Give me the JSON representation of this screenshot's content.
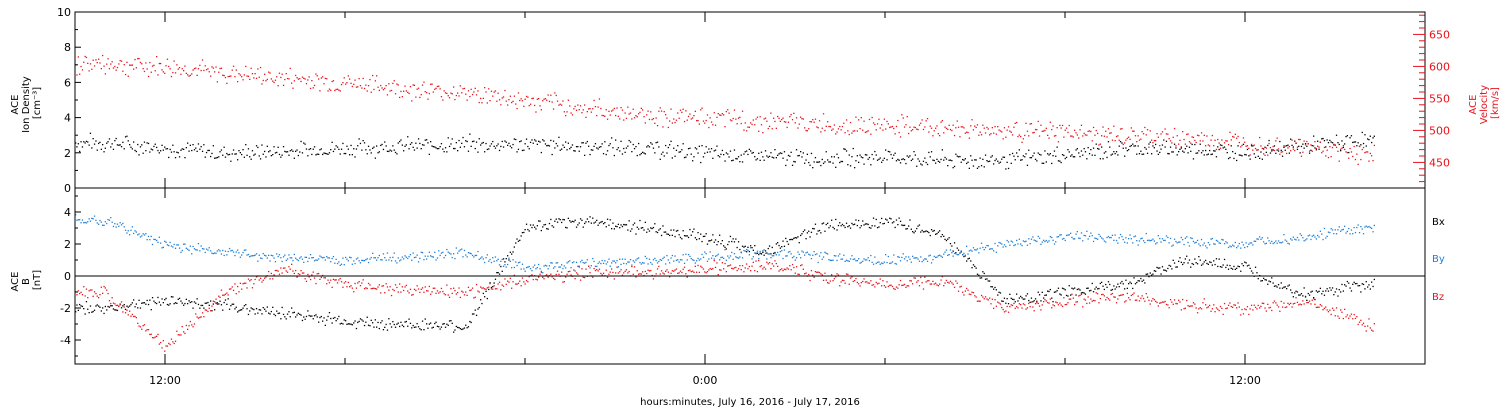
{
  "chart_data": {
    "type": "scatter",
    "xlabel": "hours:minutes, July 16, 2016 - July 17, 2016",
    "x_ticks": [
      "12:00",
      "0:00",
      "12:00"
    ],
    "colors": {
      "black": "#000000",
      "red": "#e8141b",
      "blue": "#1f7fd6"
    },
    "panels": [
      {
        "name": "solar-wind",
        "left_axis": {
          "label": [
            "ACE",
            "Ion Density",
            "[cm⁻³]"
          ],
          "ylim": [
            0,
            10
          ],
          "ticks": [
            "0",
            "2",
            "4",
            "6",
            "8",
            "10"
          ]
        },
        "right_axis": {
          "label": [
            "ACE",
            "Velocity",
            "[km/s]"
          ],
          "ylim": [
            410,
            685
          ],
          "ticks": [
            "450",
            "500",
            "550",
            "600",
            "650"
          ],
          "color": "#e8141b"
        },
        "series": [
          {
            "key": "density",
            "axis": "left",
            "color": "#000000",
            "x": [
              1,
              3,
              5,
              7,
              9,
              11,
              13,
              15,
              17,
              19,
              21,
              23,
              25,
              27,
              29,
              31,
              33,
              35,
              37,
              39,
              41,
              43
            ],
            "y": [
              2.6,
              2.3,
              2.0,
              2.1,
              2.3,
              2.4,
              2.5,
              2.5,
              2.4,
              2.3,
              2.0,
              1.8,
              1.7,
              1.8,
              1.6,
              1.6,
              1.9,
              2.3,
              2.2,
              2.1,
              2.4,
              2.7
            ]
          },
          {
            "key": "velocity",
            "axis": "right",
            "color": "#e8141b",
            "x": [
              1,
              3,
              5,
              7,
              9,
              11,
              13,
              15,
              17,
              19,
              21,
              23,
              25,
              27,
              29,
              31,
              33,
              35,
              37,
              39,
              41,
              43
            ],
            "y": [
              605,
              600,
              590,
              582,
              575,
              565,
              560,
              547,
              535,
              525,
              520,
              515,
              510,
              508,
              505,
              500,
              497,
              492,
              488,
              482,
              475,
              465
            ]
          }
        ]
      },
      {
        "name": "magnetic-field",
        "left_axis": {
          "label": [
            "ACE",
            "B",
            "[nT]"
          ],
          "ylim": [
            -5.5,
            5.5
          ],
          "ticks": [
            "-4",
            "-2",
            "0",
            "2",
            "4"
          ]
        },
        "series": [
          {
            "key": "bx",
            "label": "Bx",
            "color": "#000000",
            "x": [
              1,
              3,
              5,
              7,
              9,
              11,
              13,
              15,
              17,
              19,
              21,
              23,
              25,
              27,
              29,
              31,
              33,
              35,
              37,
              39,
              41,
              43
            ],
            "y": [
              -2.0,
              -1.5,
              -1.8,
              -2.3,
              -2.8,
              -3.0,
              -3.2,
              3.0,
              3.5,
              3.0,
              2.5,
              1.5,
              3.2,
              3.5,
              2.5,
              -1.5,
              -1.0,
              -0.5,
              1.0,
              0.5,
              -1.2,
              -0.5
            ]
          },
          {
            "key": "by",
            "label": "By",
            "color": "#1f7fd6",
            "x": [
              1,
              3,
              5,
              7,
              9,
              11,
              13,
              15,
              17,
              19,
              21,
              23,
              25,
              27,
              29,
              31,
              33,
              35,
              37,
              39,
              41,
              43
            ],
            "y": [
              3.5,
              2.0,
              1.5,
              1.2,
              1.0,
              1.2,
              1.5,
              0.5,
              0.8,
              1.0,
              1.2,
              1.5,
              1.2,
              1.0,
              1.3,
              2.0,
              2.5,
              2.4,
              2.2,
              2.0,
              2.5,
              3.0
            ]
          },
          {
            "key": "bz",
            "label": "Bz",
            "color": "#e8141b",
            "x": [
              1,
              3,
              5,
              7,
              9,
              11,
              13,
              15,
              17,
              19,
              21,
              23,
              25,
              27,
              29,
              31,
              33,
              35,
              37,
              39,
              41,
              43
            ],
            "y": [
              -1.0,
              -4.5,
              -1.0,
              0.5,
              -0.5,
              -0.8,
              -1.0,
              -0.2,
              0.3,
              0.2,
              0.5,
              0.8,
              0.0,
              -0.5,
              -0.3,
              -2.0,
              -1.5,
              -1.2,
              -1.8,
              -2.0,
              -1.5,
              -3.0
            ]
          }
        ]
      }
    ]
  }
}
